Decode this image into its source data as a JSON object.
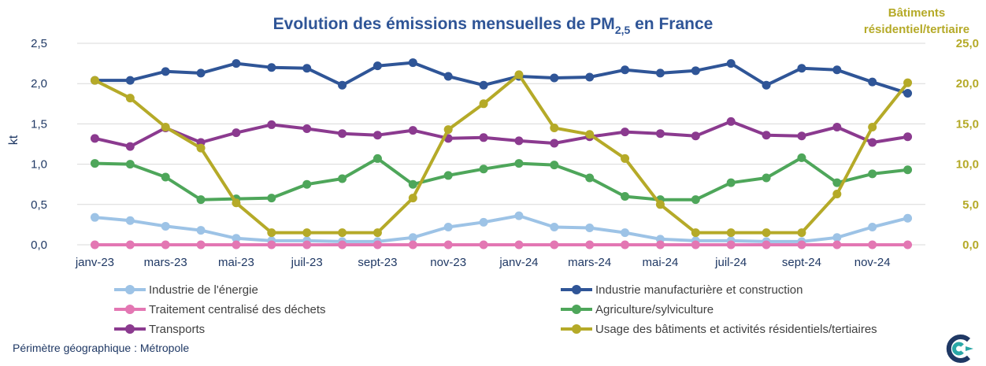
{
  "chart_data": {
    "type": "line",
    "title": "Evolution des émissions mensuelles de PM",
    "title_subscript": "2,5",
    "title_suffix": " en France",
    "ylabel": "kt",
    "y2label_line1": "Bâtiments",
    "y2label_line2": "résidentiel/tertiaire",
    "ylim": [
      0,
      2.5
    ],
    "y2lim": [
      0,
      25
    ],
    "yticks": [
      "0,0",
      "0,5",
      "1,0",
      "1,5",
      "2,0",
      "2,5"
    ],
    "y2ticks": [
      "0,0",
      "5,0",
      "10,0",
      "15,0",
      "20,0",
      "25,0"
    ],
    "grid": true,
    "legend_position": "bottom",
    "x": [
      "janv-23",
      "févr-23",
      "mars-23",
      "avr-23",
      "mai-23",
      "juin-23",
      "juil-23",
      "août-23",
      "sept-23",
      "oct-23",
      "nov-23",
      "déc-23",
      "janv-24",
      "févr-24",
      "mars-24",
      "avr-24",
      "mai-24",
      "juin-24",
      "juil-24",
      "août-24",
      "sept-24",
      "oct-24",
      "nov-24",
      "déc-24"
    ],
    "xtick_labels": [
      "janv-23",
      "",
      "mars-23",
      "",
      "mai-23",
      "",
      "juil-23",
      "",
      "sept-23",
      "",
      "nov-23",
      "",
      "janv-24",
      "",
      "mars-24",
      "",
      "mai-24",
      "",
      "juil-24",
      "",
      "sept-24",
      "",
      "nov-24",
      ""
    ],
    "series": [
      {
        "name": "Industrie de l'énergie",
        "color": "#9dc3e6",
        "axis": "left",
        "values": [
          0.34,
          0.3,
          0.23,
          0.18,
          0.08,
          0.05,
          0.05,
          0.04,
          0.04,
          0.09,
          0.22,
          0.28,
          0.36,
          0.22,
          0.21,
          0.15,
          0.07,
          0.05,
          0.05,
          0.04,
          0.04,
          0.09,
          0.22,
          0.33
        ]
      },
      {
        "name": "Industrie manufacturière et construction",
        "color": "#2f5597",
        "axis": "left",
        "values": [
          2.04,
          2.04,
          2.15,
          2.13,
          2.25,
          2.2,
          2.19,
          1.98,
          2.22,
          2.26,
          2.09,
          1.98,
          2.09,
          2.07,
          2.08,
          2.17,
          2.13,
          2.16,
          2.25,
          1.98,
          2.19,
          2.17,
          2.02,
          1.88
        ]
      },
      {
        "name": "Traitement centralisé des déchets",
        "color": "#e377b3",
        "axis": "left",
        "values": [
          0.0,
          0.0,
          0.0,
          0.0,
          0.0,
          0.0,
          0.0,
          0.0,
          0.0,
          0.0,
          0.0,
          0.0,
          0.0,
          0.0,
          0.0,
          0.0,
          0.0,
          0.0,
          0.0,
          0.0,
          0.0,
          0.0,
          0.0,
          0.0
        ]
      },
      {
        "name": "Agriculture/sylviculture",
        "color": "#4ea65a",
        "axis": "left",
        "values": [
          1.01,
          1.0,
          0.84,
          0.56,
          0.57,
          0.58,
          0.75,
          0.82,
          1.07,
          0.75,
          0.86,
          0.94,
          1.01,
          0.99,
          0.83,
          0.6,
          0.56,
          0.56,
          0.77,
          0.83,
          1.08,
          0.77,
          0.88,
          0.93
        ]
      },
      {
        "name": "Transports",
        "color": "#8b3a8f",
        "axis": "left",
        "values": [
          1.32,
          1.22,
          1.45,
          1.27,
          1.39,
          1.49,
          1.44,
          1.38,
          1.36,
          1.42,
          1.32,
          1.33,
          1.29,
          1.26,
          1.34,
          1.4,
          1.38,
          1.35,
          1.53,
          1.36,
          1.35,
          1.46,
          1.27,
          1.34
        ]
      },
      {
        "name": "Usage des bâtiments et activités résidentiels/tertiaires",
        "color": "#b5aa28",
        "axis": "right",
        "values": [
          20.4,
          18.2,
          14.6,
          12.0,
          5.2,
          1.5,
          1.5,
          1.5,
          1.5,
          5.8,
          14.3,
          17.5,
          21.1,
          14.5,
          13.7,
          10.7,
          5.0,
          1.5,
          1.5,
          1.5,
          1.5,
          6.3,
          14.6,
          20.1
        ]
      }
    ]
  },
  "footer": "Périmètre géographique : Métropole",
  "colors": {
    "title": "#2f5597",
    "right_axis": "#b5aa28",
    "axis_text": "#1f3864",
    "grid": "#d9d9d9"
  }
}
